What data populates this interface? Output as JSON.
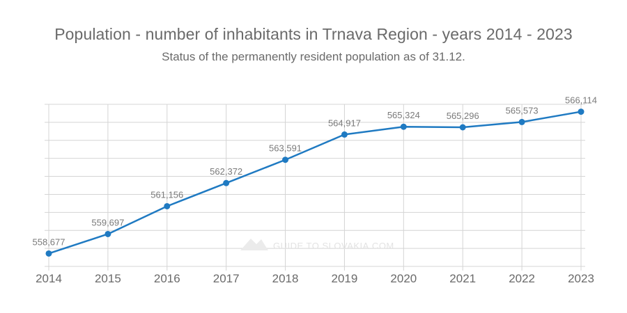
{
  "title": "Population - number of inhabitants in Trnava Region - years 2014 - 2023",
  "subtitle": "Status of the permanently resident population as of 31.12.",
  "watermark": "GUIDE TO SLOVAKIA.COM",
  "colors": {
    "line": "#1f7ac2",
    "grid": "#d4d4d4",
    "text": "#6a6a6a"
  },
  "chart_data": {
    "type": "line",
    "categories": [
      "2014",
      "2015",
      "2016",
      "2017",
      "2018",
      "2019",
      "2020",
      "2021",
      "2022",
      "2023"
    ],
    "values": [
      558677,
      559697,
      561156,
      562372,
      563591,
      564917,
      565324,
      565296,
      565573,
      566114
    ],
    "value_labels": [
      "558,677",
      "559,697",
      "561,156",
      "562,372",
      "563,591",
      "564,917",
      "565,324",
      "565,296",
      "565,573",
      "566,114"
    ],
    "title": "Population - number of inhabitants in Trnava Region - years 2014 - 2023",
    "subtitle": "Status of the permanently resident population as of 31.12.",
    "ylim": [
      558000,
      566500
    ],
    "grid": true,
    "legend": "none"
  }
}
